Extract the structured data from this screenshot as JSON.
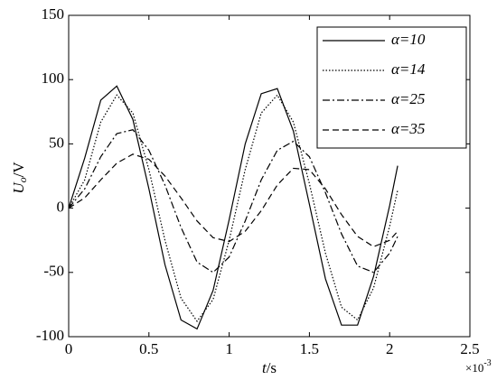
{
  "chart_data": {
    "type": "line",
    "ylabel_symbol": "U",
    "ylabel_subscript": "o",
    "ylabel_unit": "/V",
    "xlabel_symbol": "t",
    "xlabel_unit": "/s",
    "x_multiplier": "×10",
    "x_multiplier_exponent": "-3",
    "x": [
      0,
      0.1,
      0.2,
      0.3,
      0.4,
      0.5,
      0.6,
      0.7,
      0.8,
      0.9,
      1.0,
      1.1,
      1.2,
      1.3,
      1.4,
      1.5,
      1.6,
      1.7,
      1.8,
      1.9,
      2.0,
      2.05
    ],
    "series": [
      {
        "name": "α=10",
        "color": "#000000",
        "dash": "solid",
        "values": [
          0,
          39,
          84,
          95,
          69,
          15,
          -44,
          -87,
          -94,
          -64,
          -9,
          50,
          89,
          93,
          60,
          3,
          -55,
          -91,
          -91,
          -53,
          2,
          33
        ]
      },
      {
        "name": "α=14",
        "color": "#000000",
        "dash": "dotted",
        "values": [
          0,
          22,
          67,
          88,
          74,
          30,
          -25,
          -70,
          -88,
          -71,
          -25,
          30,
          74,
          88,
          67,
          19,
          -35,
          -77,
          -87,
          -62,
          -14,
          14
        ]
      },
      {
        "name": "α=25",
        "color": "#000000",
        "dash": "dashdot",
        "values": [
          0,
          15,
          40,
          58,
          61,
          45,
          18,
          -15,
          -42,
          -50,
          -38,
          -10,
          22,
          45,
          52,
          40,
          12,
          -20,
          -45,
          -50,
          -35,
          -22
        ]
      },
      {
        "name": "α=35",
        "color": "#000000",
        "dash": "dashed",
        "values": [
          0,
          8,
          22,
          35,
          42,
          38,
          25,
          8,
          -10,
          -23,
          -26,
          -18,
          -2,
          18,
          31,
          30,
          15,
          -5,
          -22,
          -30,
          -25,
          -18
        ]
      }
    ],
    "xlim": [
      0,
      2.5
    ],
    "xticks": [
      0,
      0.5,
      1,
      1.5,
      2,
      2.5
    ],
    "ylim": [
      -100,
      150
    ],
    "yticks": [
      -100,
      -50,
      0,
      50,
      100,
      150
    ],
    "grid": false,
    "legend": "upper right"
  }
}
